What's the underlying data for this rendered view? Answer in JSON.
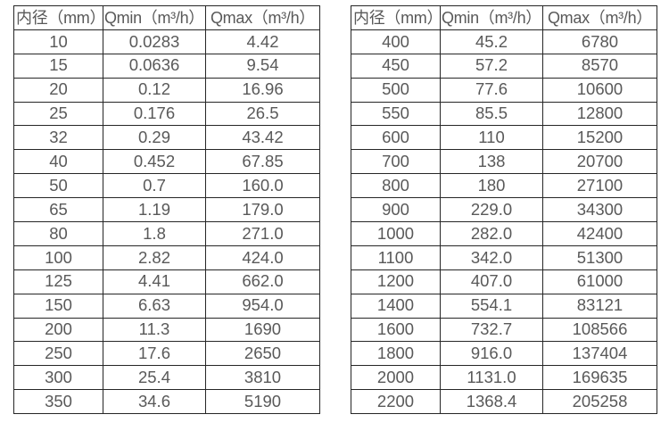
{
  "colors": {
    "background": "#ffffff",
    "border": "#262626",
    "text": "#595959"
  },
  "tables": [
    {
      "name": "small-diameter-table",
      "headers": [
        "内径（mm）",
        "Qmin（m³/h）",
        "Qmax（m³/h）"
      ],
      "rows": [
        [
          "10",
          "0.0283",
          "4.42"
        ],
        [
          "15",
          "0.0636",
          "9.54"
        ],
        [
          "20",
          "0.12",
          "16.96"
        ],
        [
          "25",
          "0.176",
          "26.5"
        ],
        [
          "32",
          "0.29",
          "43.42"
        ],
        [
          "40",
          "0.452",
          "67.85"
        ],
        [
          "50",
          "0.7",
          "160.0"
        ],
        [
          "65",
          "1.19",
          "179.0"
        ],
        [
          "80",
          "1.8",
          "271.0"
        ],
        [
          "100",
          "2.82",
          "424.0"
        ],
        [
          "125",
          "4.41",
          "662.0"
        ],
        [
          "150",
          "6.63",
          "954.0"
        ],
        [
          "200",
          "11.3",
          "1690"
        ],
        [
          "250",
          "17.6",
          "2650"
        ],
        [
          "300",
          "25.4",
          "3810"
        ],
        [
          "350",
          "34.6",
          "5190"
        ]
      ]
    },
    {
      "name": "large-diameter-table",
      "headers": [
        "内径（mm）",
        "Qmin（m³/h）",
        "Qmax（m³/h）"
      ],
      "rows": [
        [
          "400",
          "45.2",
          "6780"
        ],
        [
          "450",
          "57.2",
          "8570"
        ],
        [
          "500",
          "77.6",
          "10600"
        ],
        [
          "550",
          "85.5",
          "12800"
        ],
        [
          "600",
          "110",
          "15200"
        ],
        [
          "700",
          "138",
          "20700"
        ],
        [
          "800",
          "180",
          "27100"
        ],
        [
          "900",
          "229.0",
          "34300"
        ],
        [
          "1000",
          "282.0",
          "42400"
        ],
        [
          "1100",
          "342.0",
          "51300"
        ],
        [
          "1200",
          "407.0",
          "61000"
        ],
        [
          "1400",
          "554.1",
          "83121"
        ],
        [
          "1600",
          "732.7",
          "108566"
        ],
        [
          "1800",
          "916.0",
          "137404"
        ],
        [
          "2000",
          "1131.0",
          "169635"
        ],
        [
          "2200",
          "1368.4",
          "205258"
        ]
      ]
    }
  ]
}
